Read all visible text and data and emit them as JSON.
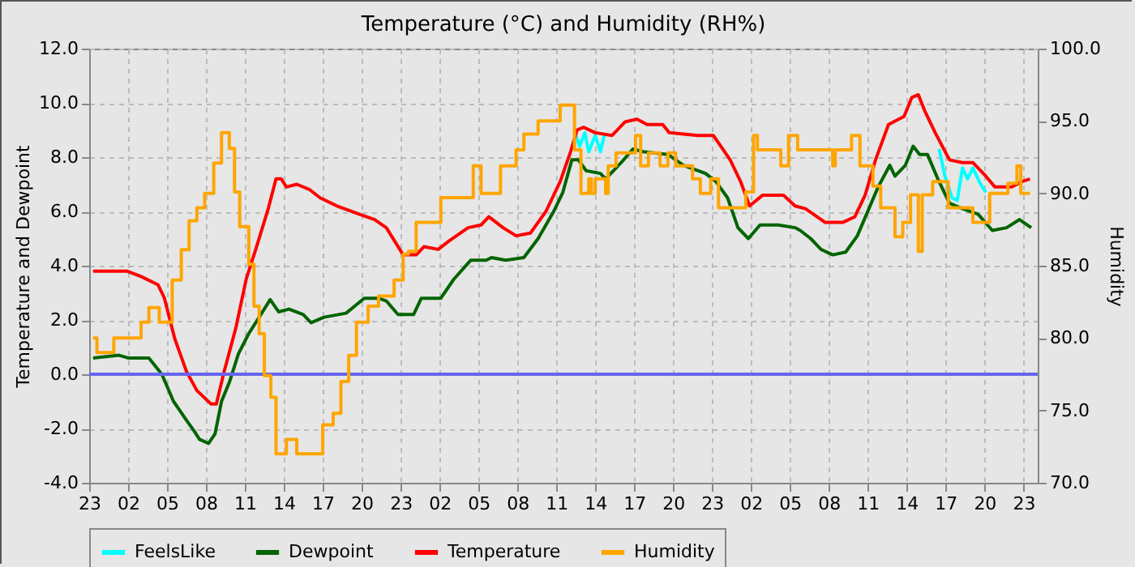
{
  "chart_data": {
    "type": "line",
    "title": "Temperature (°C) and Humidity (RH%)",
    "ylabel": "Temperature and Dewpoint",
    "y2label": "Humidity",
    "xlim": [
      "--01-01T23:00",
      "--01-05T00:06"
    ],
    "xticks": [
      {
        "value": "--01-01T23:00",
        "label": "23"
      },
      {
        "value": "--01-02T02:00",
        "label": "02"
      },
      {
        "value": "--01-02T05:00",
        "label": "05"
      },
      {
        "value": "--01-02T08:00",
        "label": "08"
      },
      {
        "value": "--01-02T11:00",
        "label": "11"
      },
      {
        "value": "--01-02T14:00",
        "label": "14"
      },
      {
        "value": "--01-02T17:00",
        "label": "17"
      },
      {
        "value": "--01-02T20:00",
        "label": "20"
      },
      {
        "value": "--01-02T23:00",
        "label": "23"
      },
      {
        "value": "--01-03T02:00",
        "label": "02"
      },
      {
        "value": "--01-03T05:00",
        "label": "05"
      },
      {
        "value": "--01-03T08:00",
        "label": "08"
      },
      {
        "value": "--01-03T11:00",
        "label": "11"
      },
      {
        "value": "--01-03T14:00",
        "label": "14"
      },
      {
        "value": "--01-03T17:00",
        "label": "17"
      },
      {
        "value": "--01-03T20:00",
        "label": "20"
      },
      {
        "value": "--01-03T23:00",
        "label": "23"
      },
      {
        "value": "--01-04T02:00",
        "label": "02"
      },
      {
        "value": "--01-04T05:00",
        "label": "05"
      },
      {
        "value": "--01-04T08:00",
        "label": "08"
      },
      {
        "value": "--01-04T11:00",
        "label": "11"
      },
      {
        "value": "--01-04T14:00",
        "label": "14"
      },
      {
        "value": "--01-04T17:00",
        "label": "17"
      },
      {
        "value": "--01-04T20:00",
        "label": "20"
      },
      {
        "value": "--01-04T23:00",
        "label": "23"
      }
    ],
    "ylim": [
      -4,
      12
    ],
    "yticks": [
      {
        "value": -4,
        "label": "-4.0"
      },
      {
        "value": -2,
        "label": "-2.0"
      },
      {
        "value": 0,
        "label": "0.0"
      },
      {
        "value": 2,
        "label": "2.0"
      },
      {
        "value": 4,
        "label": "4.0"
      },
      {
        "value": 6,
        "label": "6.0"
      },
      {
        "value": 8,
        "label": "8.0"
      },
      {
        "value": 10,
        "label": "10.0"
      },
      {
        "value": 12,
        "label": "12.0"
      }
    ],
    "y2lim": [
      70,
      100
    ],
    "y2ticks": [
      {
        "value": 70,
        "label": "70.0"
      },
      {
        "value": 75,
        "label": "75.0"
      },
      {
        "value": 80,
        "label": "80.0"
      },
      {
        "value": 85,
        "label": "85.0"
      },
      {
        "value": 90,
        "label": "90.0"
      },
      {
        "value": 95,
        "label": "95.0"
      },
      {
        "value": 100,
        "label": "100.0"
      }
    ],
    "grid": true,
    "legend": "bottom",
    "ref_lines": [
      {
        "axis": "y",
        "value": 0,
        "color": "#6666ee"
      }
    ],
    "series": [
      {
        "name": "FeelsLike",
        "color": "#00ffff",
        "x": [
          "--01-03T12:30",
          "--01-03T12:48",
          "--01-03T13:12",
          "--01-03T13:30",
          "--01-03T14:00",
          "--01-03T14:24",
          "--01-03T14:42",
          "--01-04T03:00",
          "--01-04T16:30",
          "--01-04T16:57",
          "--01-04T17:30",
          "--01-04T17:54",
          "--01-04T18:18",
          "--01-04T18:42",
          "--01-04T19:06",
          "--01-04T19:42",
          "--01-04T20:06"
        ],
        "values": [
          8.8,
          8.4,
          8.9,
          8.2,
          8.8,
          8.2,
          8.8,
          null,
          8.3,
          7.3,
          6.5,
          6.4,
          7.6,
          7.2,
          7.6,
          7.0,
          6.7
        ]
      },
      {
        "name": "Dewpoint",
        "color": "#006400",
        "x": [
          "--01-01T23:18",
          "--01-02T01:18",
          "--01-02T02:00",
          "--01-02T03:36",
          "--01-02T04:36",
          "--01-02T05:30",
          "--01-02T06:30",
          "--01-02T07:06",
          "--01-02T07:30",
          "--01-02T08:12",
          "--01-02T08:42",
          "--01-02T09:12",
          "--01-02T09:48",
          "--01-02T10:30",
          "--01-02T11:18",
          "--01-02T12:06",
          "--01-02T12:57",
          "--01-02T13:36",
          "--01-02T14:24",
          "--01-02T15:30",
          "--01-02T16:06",
          "--01-02T17:06",
          "--01-02T18:48",
          "--01-02T20:12",
          "--01-02T21:18",
          "--01-02T21:54",
          "--01-02T22:48",
          "--01-03T00:00",
          "--01-03T00:36",
          "--01-03T02:06",
          "--01-03T03:06",
          "--01-03T04:24",
          "--01-03T05:36",
          "--01-03T06:00",
          "--01-03T07:06",
          "--01-03T08:30",
          "--01-03T09:36",
          "--01-03T10:48",
          "--01-03T11:30",
          "--01-03T12:12",
          "--01-03T12:42",
          "--01-03T13:18",
          "--01-03T14:24",
          "--01-03T14:48",
          "--01-03T16:00",
          "--01-03T16:54",
          "--01-03T17:42",
          "--01-03T19:36",
          "--01-03T20:48",
          "--01-03T22:30",
          "--01-03T23:18",
          "--01-04T00:12",
          "--01-04T01:00",
          "--01-04T01:48",
          "--01-04T02:42",
          "--01-04T04:06",
          "--01-04T05:24",
          "--01-04T05:48",
          "--01-04T06:36",
          "--01-04T07:24",
          "--01-04T08:18",
          "--01-04T09:18",
          "--01-04T10:12",
          "--01-04T11:00",
          "--01-04T11:48",
          "--01-04T12:42",
          "--01-04T13:06",
          "--01-04T13:54",
          "--01-04T14:30",
          "--01-04T15:00",
          "--01-04T15:36",
          "--01-04T16:24",
          "--01-04T17:18",
          "--01-04T18:18",
          "--01-04T19:30",
          "--01-04T20:36",
          "--01-04T21:42",
          "--01-04T22:42",
          "--01-04T23:36"
        ],
        "values": [
          0.6,
          0.7,
          0.6,
          0.6,
          0.0,
          -1.0,
          -1.7,
          -2.1,
          -2.4,
          -2.55,
          -2.2,
          -1.0,
          -0.3,
          0.75,
          1.5,
          2.1,
          2.75,
          2.3,
          2.4,
          2.2,
          1.9,
          2.1,
          2.25,
          2.8,
          2.8,
          2.7,
          2.2,
          2.2,
          2.8,
          2.8,
          3.5,
          4.2,
          4.2,
          4.3,
          4.2,
          4.3,
          5.0,
          6.0,
          6.7,
          7.9,
          7.9,
          7.5,
          7.4,
          7.2,
          7.8,
          8.3,
          8.2,
          8.1,
          7.7,
          7.4,
          7.1,
          6.5,
          5.4,
          5.0,
          5.5,
          5.5,
          5.4,
          5.3,
          5.0,
          4.6,
          4.4,
          4.5,
          5.1,
          6.0,
          6.9,
          7.7,
          7.3,
          7.7,
          8.4,
          8.1,
          8.1,
          7.2,
          6.3,
          6.1,
          5.9,
          5.3,
          5.4,
          5.7,
          5.4
        ]
      },
      {
        "name": "Temperature",
        "color": "#ff0000",
        "x": [
          "--01-01T23:18",
          "--01-02T01:54",
          "--01-02T03:00",
          "--01-02T04:18",
          "--01-02T04:48",
          "--01-02T05:36",
          "--01-02T06:30",
          "--01-02T07:18",
          "--01-02T08:24",
          "--01-02T08:48",
          "--01-02T09:24",
          "--01-02T10:18",
          "--01-02T11:06",
          "--01-02T11:54",
          "--01-02T12:48",
          "--01-02T13:24",
          "--01-02T13:48",
          "--01-02T14:12",
          "--01-02T15:00",
          "--01-02T16:00",
          "--01-02T16:48",
          "--01-02T18:06",
          "--01-02T19:48",
          "--01-02T21:00",
          "--01-02T21:54",
          "--01-02T23:12",
          "--01-03T00:12",
          "--01-03T00:48",
          "--01-03T01:54",
          "--01-03T02:42",
          "--01-03T04:12",
          "--01-03T05:12",
          "--01-03T05:48",
          "--01-03T06:54",
          "--01-03T07:54",
          "--01-03T09:00",
          "--01-03T10:12",
          "--01-03T11:18",
          "--01-03T12:06",
          "--01-03T12:36",
          "--01-03T13:06",
          "--01-03T14:00",
          "--01-03T15:18",
          "--01-03T16:18",
          "--01-03T17:12",
          "--01-03T18:00",
          "--01-03T19:12",
          "--01-03T19:42",
          "--01-03T21:54",
          "--01-03T23:06",
          "--01-04T00:24",
          "--01-04T01:12",
          "--01-04T01:54",
          "--01-04T02:54",
          "--01-04T04:30",
          "--01-04T05:24",
          "--01-04T06:12",
          "--01-04T07:42",
          "--01-04T09:06",
          "--01-04T10:00",
          "--01-04T10:48",
          "--01-04T11:36",
          "--01-04T12:36",
          "--01-04T13:48",
          "--01-04T14:24",
          "--01-04T14:54",
          "--01-04T15:24",
          "--01-04T16:12",
          "--01-04T17:18",
          "--01-04T18:18",
          "--01-04T19:06",
          "--01-04T20:06",
          "--01-04T20:48",
          "--01-04T22:06",
          "--01-04T22:54",
          "--01-04T23:30"
        ],
        "values": [
          3.8,
          3.8,
          3.6,
          3.3,
          2.8,
          1.3,
          0.1,
          -0.6,
          -1.1,
          -1.1,
          0.1,
          1.7,
          3.5,
          4.7,
          6.1,
          7.2,
          7.2,
          6.9,
          7.0,
          6.8,
          6.5,
          6.2,
          5.9,
          5.7,
          5.4,
          4.4,
          4.4,
          4.7,
          4.6,
          4.9,
          5.4,
          5.5,
          5.8,
          5.4,
          5.1,
          5.2,
          6.0,
          7.1,
          8.2,
          9.0,
          9.1,
          8.9,
          8.8,
          9.3,
          9.4,
          9.2,
          9.2,
          8.9,
          8.8,
          8.8,
          7.9,
          7.1,
          6.2,
          6.6,
          6.6,
          6.2,
          6.1,
          5.6,
          5.6,
          5.8,
          6.6,
          7.9,
          9.2,
          9.5,
          10.2,
          10.3,
          9.7,
          8.9,
          7.9,
          7.8,
          7.8,
          7.3,
          6.9,
          6.9,
          7.1,
          7.2
        ]
      },
      {
        "name": "Humidity",
        "color": "#ffa500",
        "type": "step",
        "axis": "y2",
        "x": [
          "--01-01T23:18",
          "--01-01T23:36",
          "--01-02T00:54",
          "--01-02T03:00",
          "--01-02T03:36",
          "--01-02T04:24",
          "--01-02T05:24",
          "--01-02T06:06",
          "--01-02T06:42",
          "--01-02T07:18",
          "--01-02T07:54",
          "--01-02T08:36",
          "--01-02T09:12",
          "--01-02T09:48",
          "--01-02T10:12",
          "--01-02T10:36",
          "--01-02T11:18",
          "--01-02T11:42",
          "--01-02T12:06",
          "--01-02T12:30",
          "--01-02T13:00",
          "--01-02T13:24",
          "--01-02T14:12",
          "--01-02T15:00",
          "--01-02T17:00",
          "--01-02T17:48",
          "--01-02T18:24",
          "--01-02T19:00",
          "--01-02T19:36",
          "--01-02T20:30",
          "--01-02T21:18",
          "--01-02T22:30",
          "--01-02T23:12",
          "--01-02T23:36",
          "--01-03T00:12",
          "--01-03T02:06",
          "--01-03T04:36",
          "--01-03T05:12",
          "--01-03T06:42",
          "--01-03T07:54",
          "--01-03T08:30",
          "--01-03T09:36",
          "--01-03T11:18",
          "--01-03T12:24",
          "--01-03T12:54",
          "--01-03T13:30",
          "--01-03T13:42",
          "--01-03T14:00",
          "--01-03T14:48",
          "--01-03T15:00",
          "--01-03T15:36",
          "--01-03T17:06",
          "--01-03T17:30",
          "--01-03T18:06",
          "--01-03T19:00",
          "--01-03T19:36",
          "--01-03T20:12",
          "--01-03T21:30",
          "--01-03T22:06",
          "--01-03T22:54",
          "--01-03T23:30",
          "--01-04T01:36",
          "--01-04T02:12",
          "--01-04T02:30",
          "--01-04T04:18",
          "--01-04T04:54",
          "--01-04T05:36",
          "--01-04T08:18",
          "--01-04T08:30",
          "--01-04T09:45",
          "--01-04T10:24",
          "--01-04T11:24",
          "--01-04T12:00",
          "--01-04T13:06",
          "--01-04T13:42",
          "--01-04T14:18",
          "--01-04T14:54",
          "--01-04T15:12",
          "--01-04T16:00",
          "--01-04T17:12",
          "--01-04T19:06",
          "--01-04T20:24",
          "--01-04T21:48",
          "--01-04T22:30",
          "--01-04T22:48",
          "--01-04T23:30"
        ],
        "values": [
          80.0,
          79.0,
          80.0,
          81.1,
          82.1,
          81.1,
          84.0,
          86.1,
          88.1,
          89.0,
          90.0,
          92.1,
          94.2,
          93.1,
          90.1,
          87.7,
          85.1,
          82.2,
          80.3,
          77.4,
          75.9,
          72.0,
          73.0,
          72.0,
          74.0,
          74.8,
          77.0,
          78.8,
          81.1,
          82.2,
          82.9,
          84.0,
          85.8,
          86.0,
          88.0,
          89.7,
          91.9,
          90.0,
          91.9,
          93.0,
          94.1,
          95.0,
          96.1,
          93.0,
          90.0,
          91.0,
          90.0,
          91.0,
          90.0,
          91.9,
          92.8,
          94.0,
          91.9,
          92.8,
          91.9,
          92.8,
          91.9,
          91.0,
          90.0,
          91.0,
          89.0,
          90.1,
          94.0,
          93.0,
          91.9,
          94.0,
          93.0,
          91.9,
          93.0,
          94.0,
          91.9,
          90.5,
          89.0,
          87.0,
          88.0,
          89.9,
          86.0,
          89.9,
          90.8,
          89.0,
          88.0,
          90.0,
          90.7,
          91.9,
          90.0,
          90.0
        ]
      }
    ]
  }
}
